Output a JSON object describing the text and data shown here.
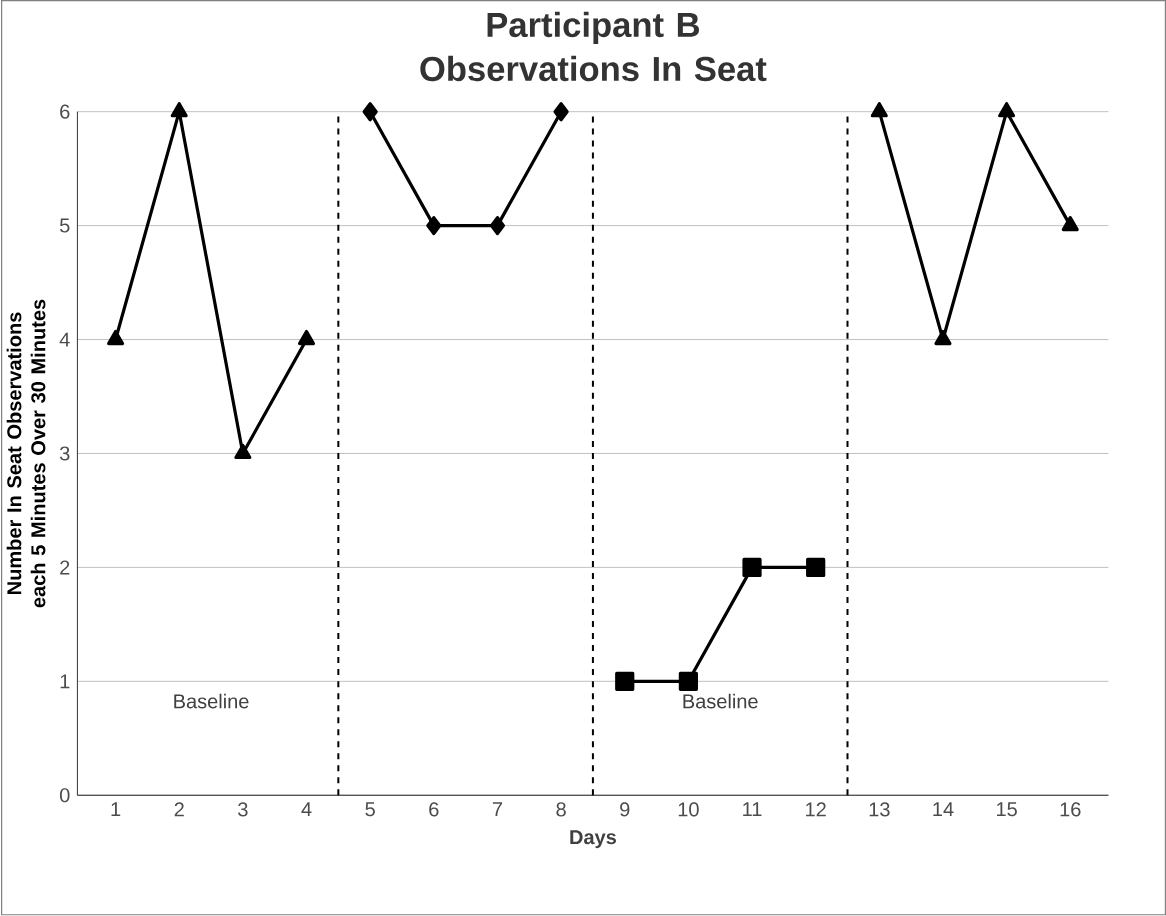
{
  "chart_data": {
    "type": "line",
    "title": "Participant B Observations In Seat",
    "xlabel": "Days",
    "ylabel": "Number In Seat Observations each 5 Minutes Over 30 Minutes",
    "xlim": [
      0.4,
      16.6
    ],
    "xticks": [
      1,
      2,
      3,
      4,
      5,
      6,
      7,
      8,
      9,
      10,
      11,
      12,
      13,
      14,
      15,
      16
    ],
    "ylim": [
      0,
      6
    ],
    "yticks": [
      0,
      1,
      2,
      3,
      4,
      5,
      6
    ],
    "grid": "y",
    "series": [
      {
        "color": "#000000",
        "marker": "triangle",
        "x": [
          1,
          2,
          3,
          4
        ],
        "values": [
          4,
          6,
          3,
          4
        ]
      },
      {
        "color": "#000000",
        "marker": "diamond",
        "x": [
          5,
          6,
          7,
          8
        ],
        "values": [
          6,
          5,
          5,
          6
        ]
      },
      {
        "color": "#000000",
        "marker": "square",
        "x": [
          9,
          10,
          11,
          12
        ],
        "values": [
          1,
          1,
          2,
          2
        ]
      },
      {
        "color": "#000000",
        "marker": "triangle",
        "x": [
          13,
          14,
          15,
          16
        ],
        "values": [
          6,
          4,
          6,
          5
        ]
      }
    ],
    "ref_lines": [
      {
        "axis": "x",
        "value": 4.5,
        "line_style": "dashed"
      },
      {
        "axis": "x",
        "value": 8.5,
        "line_style": "dashed"
      },
      {
        "axis": "x",
        "value": 12.5,
        "line_style": "dashed"
      }
    ],
    "annotations": [
      "Baseline",
      "Baseline"
    ]
  }
}
